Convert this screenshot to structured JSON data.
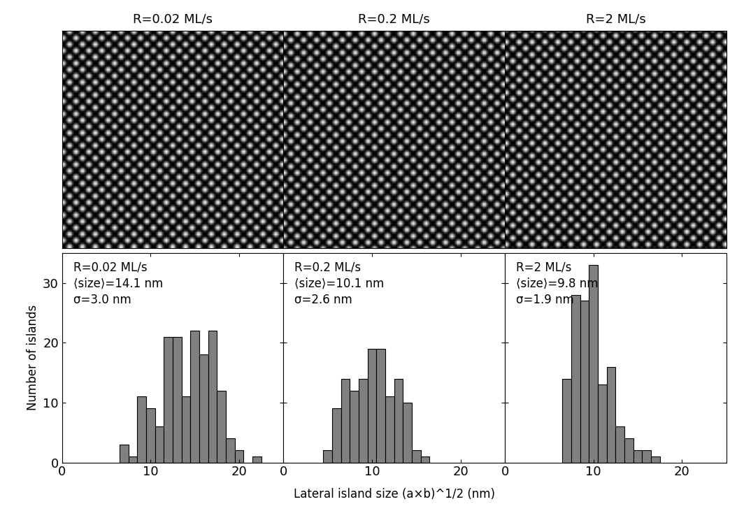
{
  "images": [
    {
      "title": "R=0.02 ML/s"
    },
    {
      "title": "R=0.2 ML/s"
    },
    {
      "title": "R=2 ML/s"
    }
  ],
  "xlabel": "Lateral island size (a×b)^1/2 (nm)",
  "ylabel": "Number of islands",
  "chart_data": [
    {
      "type": "histogram",
      "annotations": [
        "R=0.02 ML/s",
        "⟨size⟩=14.1 nm",
        "σ=3.0 nm"
      ],
      "bins": [
        6.5,
        7.5,
        8.5,
        9.5,
        10.5,
        11.5,
        12.5,
        13.5,
        14.5,
        15.5,
        16.5,
        17.5,
        18.5,
        19.5,
        20.5,
        21.5,
        22.5
      ],
      "counts": [
        3,
        1,
        11,
        9,
        6,
        21,
        21,
        11,
        22,
        18,
        22,
        12,
        4,
        2,
        0,
        1
      ],
      "color": "#808080",
      "xlim": [
        0,
        25
      ],
      "xticks": [
        0,
        10,
        20
      ],
      "ylim": [
        0,
        35
      ],
      "yticks": [
        0,
        10,
        20,
        30
      ]
    },
    {
      "type": "histogram",
      "annotations": [
        "R=0.2 ML/s",
        "⟨size⟩=10.1 nm",
        "σ=2.6 nm"
      ],
      "bins": [
        4.5,
        5.5,
        6.5,
        7.5,
        8.5,
        9.5,
        10.5,
        11.5,
        12.5,
        13.5,
        14.5,
        15.5,
        16.5
      ],
      "counts": [
        2,
        9,
        14,
        12,
        14,
        19,
        19,
        11,
        14,
        10,
        2,
        1
      ],
      "color": "#808080",
      "xlim": [
        0,
        25
      ],
      "xticks": [
        0,
        10,
        20
      ],
      "ylim": [
        0,
        35
      ],
      "yticks": [
        0,
        10,
        20,
        30
      ],
      "tick_labels": "x"
    },
    {
      "type": "histogram",
      "annotations": [
        "R=2 ML/s",
        "⟨size⟩=9.8 nm",
        "σ=1.9 nm"
      ],
      "bins": [
        6.5,
        7.5,
        8.5,
        9.5,
        10.5,
        11.5,
        12.5,
        13.5,
        14.5,
        15.5,
        16.5,
        17.5
      ],
      "counts": [
        14,
        28,
        27,
        33,
        13,
        16,
        6,
        4,
        2,
        2,
        1
      ],
      "color": "#808080",
      "xlim": [
        0,
        25
      ],
      "xticks": [
        0,
        10,
        20
      ],
      "ylim": [
        0,
        35
      ],
      "yticks": [
        0,
        10,
        20,
        30
      ],
      "tick_labels": "x"
    }
  ]
}
